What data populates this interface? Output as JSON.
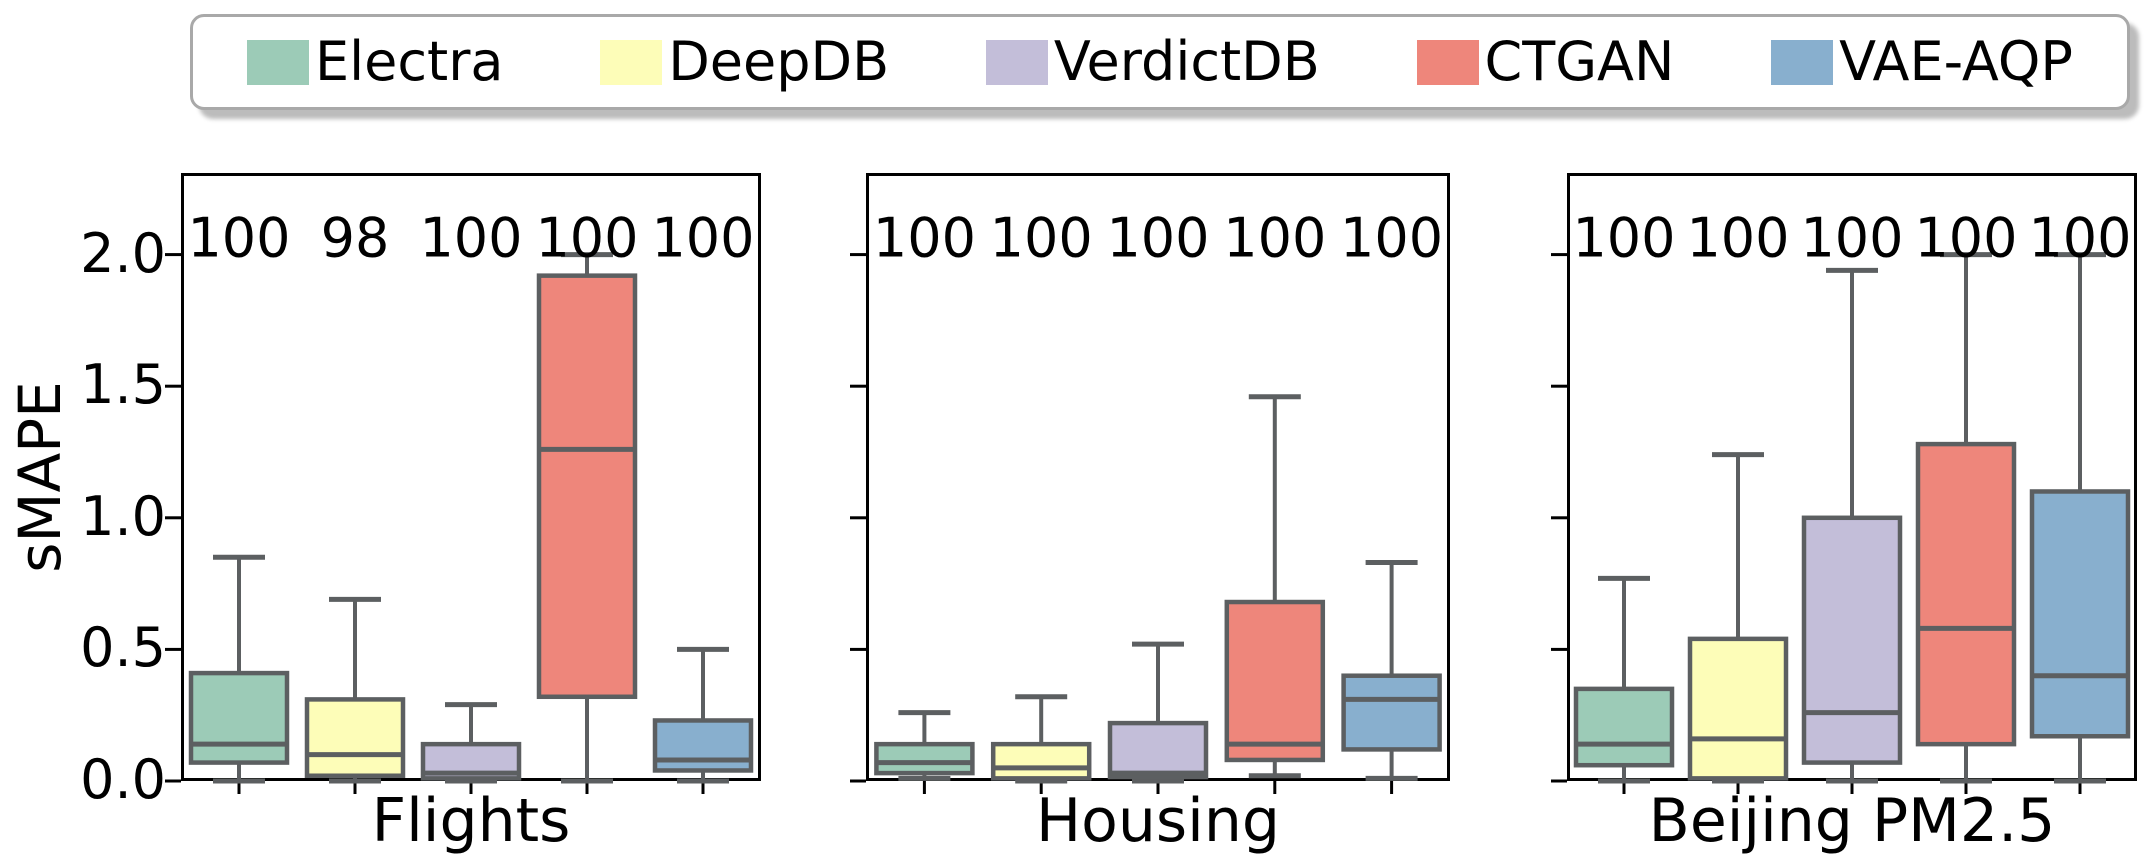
{
  "legend": {
    "items": [
      {
        "label": "Electra",
        "color": "#9ccbb7"
      },
      {
        "label": "DeepDB",
        "color": "#fdfdb8"
      },
      {
        "label": "VerdictDB",
        "color": "#c3bed9"
      },
      {
        "label": "CTGAN",
        "color": "#ee867b"
      },
      {
        "label": "VAE-AQP",
        "color": "#88afce"
      }
    ]
  },
  "chart_data": {
    "type": "boxplot",
    "ylabel": "sMAPE",
    "ylim": [
      0,
      2.31
    ],
    "yticks": [
      0.0,
      0.5,
      1.0,
      1.5,
      2.0
    ],
    "ytick_labels": [
      "0.0",
      "0.5",
      "1.0",
      "1.5",
      "2.0"
    ],
    "grid": false,
    "legend_position": "top",
    "series_names": [
      "Electra",
      "DeepDB",
      "VerdictDB",
      "CTGAN",
      "VAE-AQP"
    ],
    "colors": [
      "#9ccbb7",
      "#fdfdb8",
      "#c3bed9",
      "#ee867b",
      "#88afce"
    ],
    "edge_color": "#5c5f61",
    "spine_color": "#000000",
    "subplots": [
      {
        "title": "Flights",
        "annotations": [
          "100",
          "98",
          "100",
          "100",
          "100"
        ],
        "boxes": [
          {
            "name": "Electra",
            "whislo": 0.0,
            "q1": 0.07,
            "med": 0.14,
            "q3": 0.41,
            "whishi": 0.85
          },
          {
            "name": "DeepDB",
            "whislo": 0.0,
            "q1": 0.02,
            "med": 0.1,
            "q3": 0.31,
            "whishi": 0.69
          },
          {
            "name": "VerdictDB",
            "whislo": 0.0,
            "q1": 0.01,
            "med": 0.03,
            "q3": 0.14,
            "whishi": 0.29
          },
          {
            "name": "CTGAN",
            "whislo": 0.0,
            "q1": 0.32,
            "med": 1.26,
            "q3": 1.92,
            "whishi": 2.0
          },
          {
            "name": "VAE-AQP",
            "whislo": 0.0,
            "q1": 0.04,
            "med": 0.08,
            "q3": 0.23,
            "whishi": 0.5
          }
        ]
      },
      {
        "title": "Housing",
        "annotations": [
          "100",
          "100",
          "100",
          "100",
          "100"
        ],
        "boxes": [
          {
            "name": "Electra",
            "whislo": 0.01,
            "q1": 0.03,
            "med": 0.07,
            "q3": 0.14,
            "whishi": 0.26
          },
          {
            "name": "DeepDB",
            "whislo": 0.0,
            "q1": 0.01,
            "med": 0.05,
            "q3": 0.14,
            "whishi": 0.32
          },
          {
            "name": "VerdictDB",
            "whislo": 0.0,
            "q1": 0.015,
            "med": 0.03,
            "q3": 0.22,
            "whishi": 0.52
          },
          {
            "name": "CTGAN",
            "whislo": 0.02,
            "q1": 0.08,
            "med": 0.14,
            "q3": 0.68,
            "whishi": 1.46
          },
          {
            "name": "VAE-AQP",
            "whislo": 0.01,
            "q1": 0.12,
            "med": 0.31,
            "q3": 0.4,
            "whishi": 0.83
          }
        ]
      },
      {
        "title": "Beijing PM2.5",
        "annotations": [
          "100",
          "100",
          "100",
          "100",
          "100"
        ],
        "boxes": [
          {
            "name": "Electra",
            "whislo": 0.0,
            "q1": 0.06,
            "med": 0.14,
            "q3": 0.35,
            "whishi": 0.77
          },
          {
            "name": "DeepDB",
            "whislo": 0.0,
            "q1": 0.01,
            "med": 0.16,
            "q3": 0.54,
            "whishi": 1.24
          },
          {
            "name": "VerdictDB",
            "whislo": 0.0,
            "q1": 0.07,
            "med": 0.26,
            "q3": 1.0,
            "whishi": 1.94
          },
          {
            "name": "CTGAN",
            "whislo": 0.0,
            "q1": 0.14,
            "med": 0.58,
            "q3": 1.28,
            "whishi": 2.0
          },
          {
            "name": "VAE-AQP",
            "whislo": 0.0,
            "q1": 0.17,
            "med": 0.4,
            "q3": 1.1,
            "whishi": 2.0
          }
        ]
      }
    ]
  }
}
